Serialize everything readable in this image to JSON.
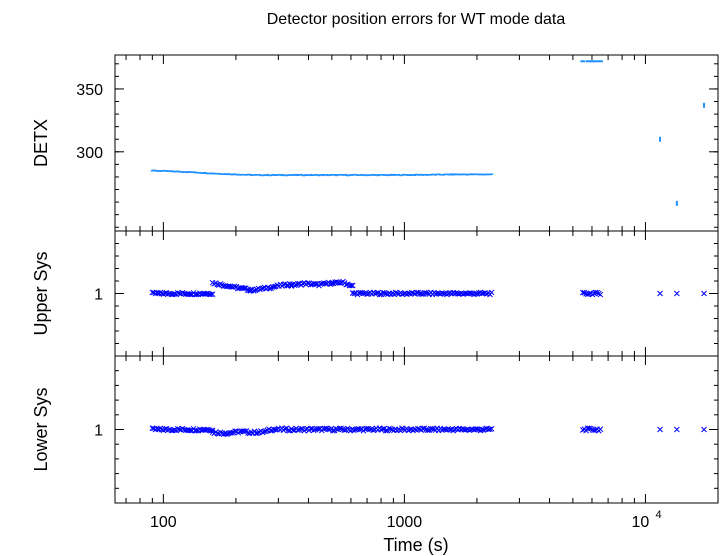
{
  "chart_data": {
    "type": "scatter",
    "title": "Detector position errors for WT mode data",
    "xlabel": "Time (s)",
    "xscale": "log",
    "xlim": [
      63,
      20000
    ],
    "xticks": [
      {
        "value": 100,
        "label": "100"
      },
      {
        "value": 1000,
        "label": "1000"
      },
      {
        "value": 10000,
        "label": "10",
        "exp": "4"
      }
    ],
    "colors": {
      "detx": "#1e90ff",
      "sys": "#0000ff"
    },
    "panels": [
      {
        "id": "detx",
        "ylabel": "DETX",
        "ylim": [
          237,
          377
        ],
        "yticks": [
          {
            "value": 300,
            "label": "300"
          },
          {
            "value": 350,
            "label": "350"
          }
        ],
        "marker": "dash",
        "series": [
          {
            "name": "",
            "segments": [
              {
                "x0": 90,
                "x1": 2300,
                "y": [
                  285,
                  284,
                  282.5,
                  281.5,
                  281.5,
                  281.5,
                  281.5,
                  281.5,
                  281.7,
                  282,
                  282
                ]
              }
            ],
            "points": [
              [
                5500,
                372
              ],
              [
                5800,
                372
              ],
              [
                6000,
                372
              ],
              [
                6200,
                372
              ],
              [
                6500,
                372
              ],
              [
                11500,
                310
              ],
              [
                13500,
                259
              ],
              [
                17500,
                337
              ]
            ]
          }
        ]
      },
      {
        "id": "upper",
        "ylabel": "Upper Sys",
        "ylim": [
          0.9,
          1.1
        ],
        "yticks": [
          {
            "value": 1,
            "label": "1"
          }
        ],
        "marker": "x",
        "series": [
          {
            "name": "",
            "segments": [
              {
                "x0": 90,
                "x1": 160,
                "y": [
                  1.0,
                  1.0
                ]
              },
              {
                "x0": 160,
                "x1": 230,
                "y": [
                  1.017,
                  1.013,
                  1.009,
                  1.006
                ]
              },
              {
                "x0": 230,
                "x1": 340,
                "y": [
                  1.005,
                  1.008,
                  1.012,
                  1.015
                ]
              },
              {
                "x0": 340,
                "x1": 500,
                "y": [
                  1.013,
                  1.016,
                  1.014,
                  1.017
                ]
              },
              {
                "x0": 500,
                "x1": 610,
                "y": [
                  1.016,
                  1.018,
                  1.012
                ]
              },
              {
                "x0": 610,
                "x1": 2300,
                "y": [
                  1.0,
                  1.0
                ]
              },
              {
                "x0": 5500,
                "x1": 6500,
                "y": [
                  1.0,
                  1.0
                ]
              }
            ],
            "points": [
              [
                11500,
                1.0
              ],
              [
                13500,
                1.0
              ],
              [
                17500,
                1.0
              ]
            ]
          }
        ]
      },
      {
        "id": "lower",
        "ylabel": "Lower Sys",
        "ylim": [
          0.9,
          1.1
        ],
        "yticks": [
          {
            "value": 1,
            "label": "1"
          }
        ],
        "marker": "x",
        "series": [
          {
            "name": "",
            "segments": [
              {
                "x0": 90,
                "x1": 160,
                "y": [
                  1.0,
                  1.0
                ]
              },
              {
                "x0": 160,
                "x1": 270,
                "y": [
                  0.996,
                  0.995,
                  0.997,
                  0.996,
                  0.997
                ]
              },
              {
                "x0": 270,
                "x1": 2300,
                "y": [
                  1.0,
                  1.0
                ]
              },
              {
                "x0": 5500,
                "x1": 6500,
                "y": [
                  1.0,
                  1.0
                ]
              }
            ],
            "points": [
              [
                11500,
                1.0
              ],
              [
                13500,
                1.0
              ],
              [
                17500,
                1.0
              ]
            ]
          }
        ]
      }
    ]
  }
}
